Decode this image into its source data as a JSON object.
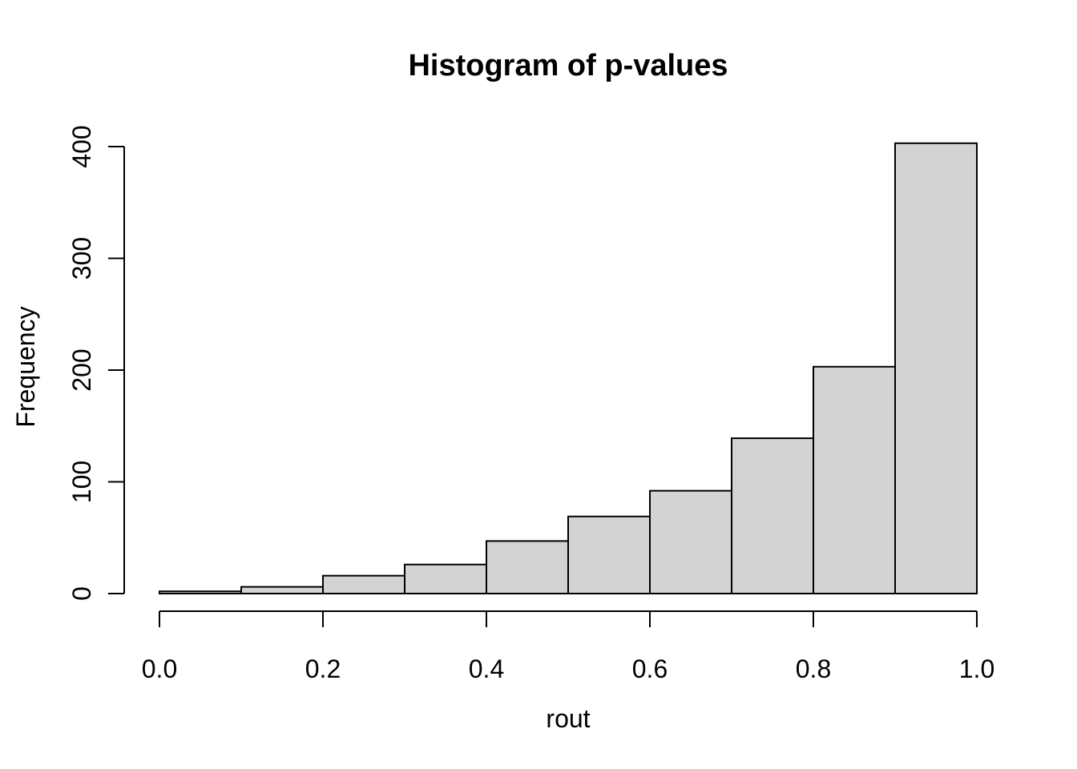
{
  "figure": {
    "background": "#ffffff"
  },
  "chart_data": {
    "type": "bar",
    "subtype": "histogram",
    "title": "Histogram of p-values",
    "xlabel": "rout",
    "ylabel": "Frequency",
    "bin_edges": [
      0.0,
      0.1,
      0.2,
      0.3,
      0.4,
      0.5,
      0.6,
      0.7,
      0.8,
      0.9,
      1.0
    ],
    "counts": [
      2,
      6,
      16,
      26,
      47,
      69,
      92,
      139,
      203,
      403
    ],
    "categories": [
      "0.0-0.1",
      "0.1-0.2",
      "0.2-0.3",
      "0.3-0.4",
      "0.4-0.5",
      "0.5-0.6",
      "0.6-0.7",
      "0.7-0.8",
      "0.8-0.9",
      "0.9-1.0"
    ],
    "x_tick_labels": [
      "0.0",
      "0.2",
      "0.4",
      "0.6",
      "0.8",
      "1.0"
    ],
    "x_tick_values": [
      0.0,
      0.2,
      0.4,
      0.6,
      0.8,
      1.0
    ],
    "y_tick_labels": [
      "0",
      "100",
      "200",
      "300",
      "400"
    ],
    "y_tick_values": [
      0,
      100,
      200,
      300,
      400
    ],
    "xlim": [
      0.0,
      1.0
    ],
    "ylim": [
      0,
      403
    ],
    "grid": false,
    "legend": null,
    "bar_fill": "#d3d3d3",
    "bar_border": "#000000",
    "axis_color": "#000000",
    "text_color": "#000000"
  }
}
